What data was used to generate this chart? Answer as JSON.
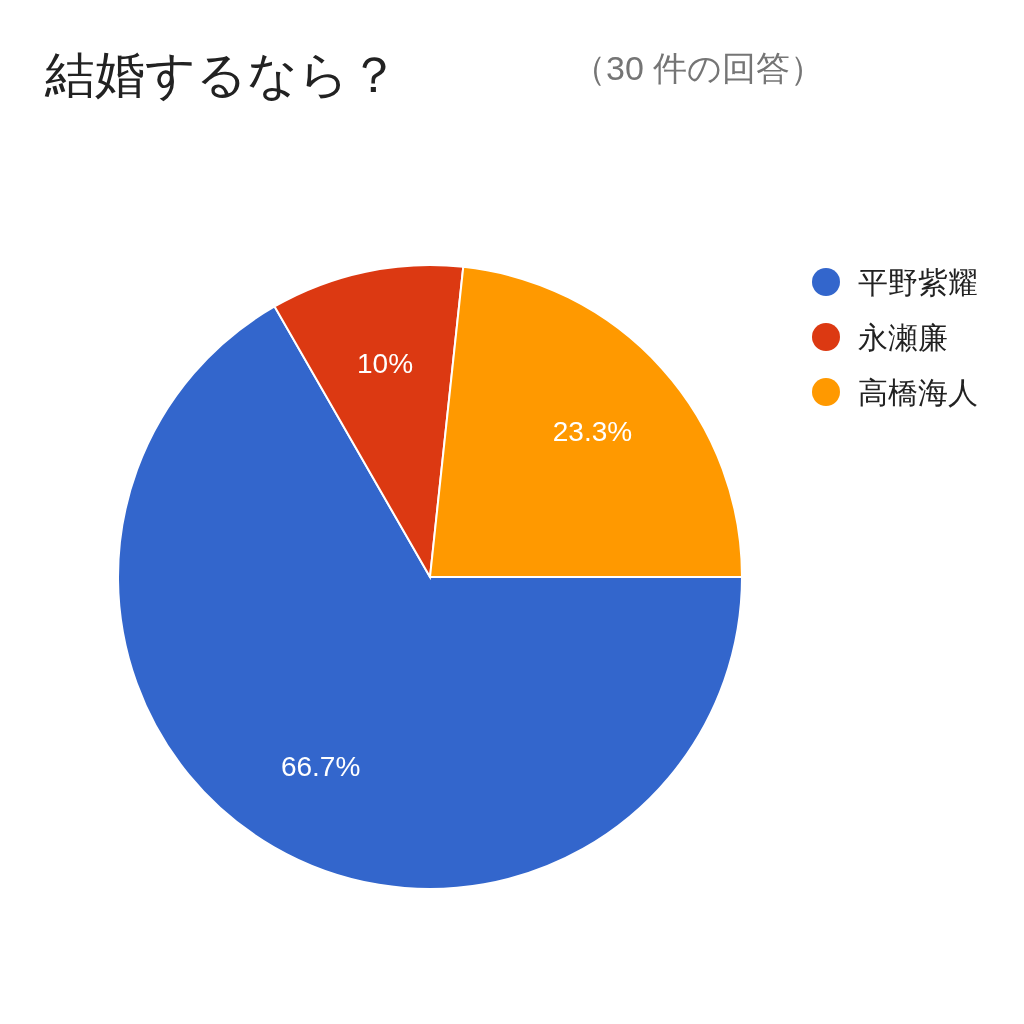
{
  "chart_data": {
    "type": "pie",
    "title": "結婚するなら？",
    "subtitle": "（30 件の回答）",
    "categories": [
      "平野紫耀",
      "永瀬廉",
      "高橋海人"
    ],
    "values": [
      66.7,
      10,
      23.3
    ],
    "colors": [
      "#3366cc",
      "#dc3912",
      "#ff9900"
    ],
    "value_labels": [
      "66.7%",
      "10%",
      "23.3%"
    ],
    "legend": "right"
  }
}
